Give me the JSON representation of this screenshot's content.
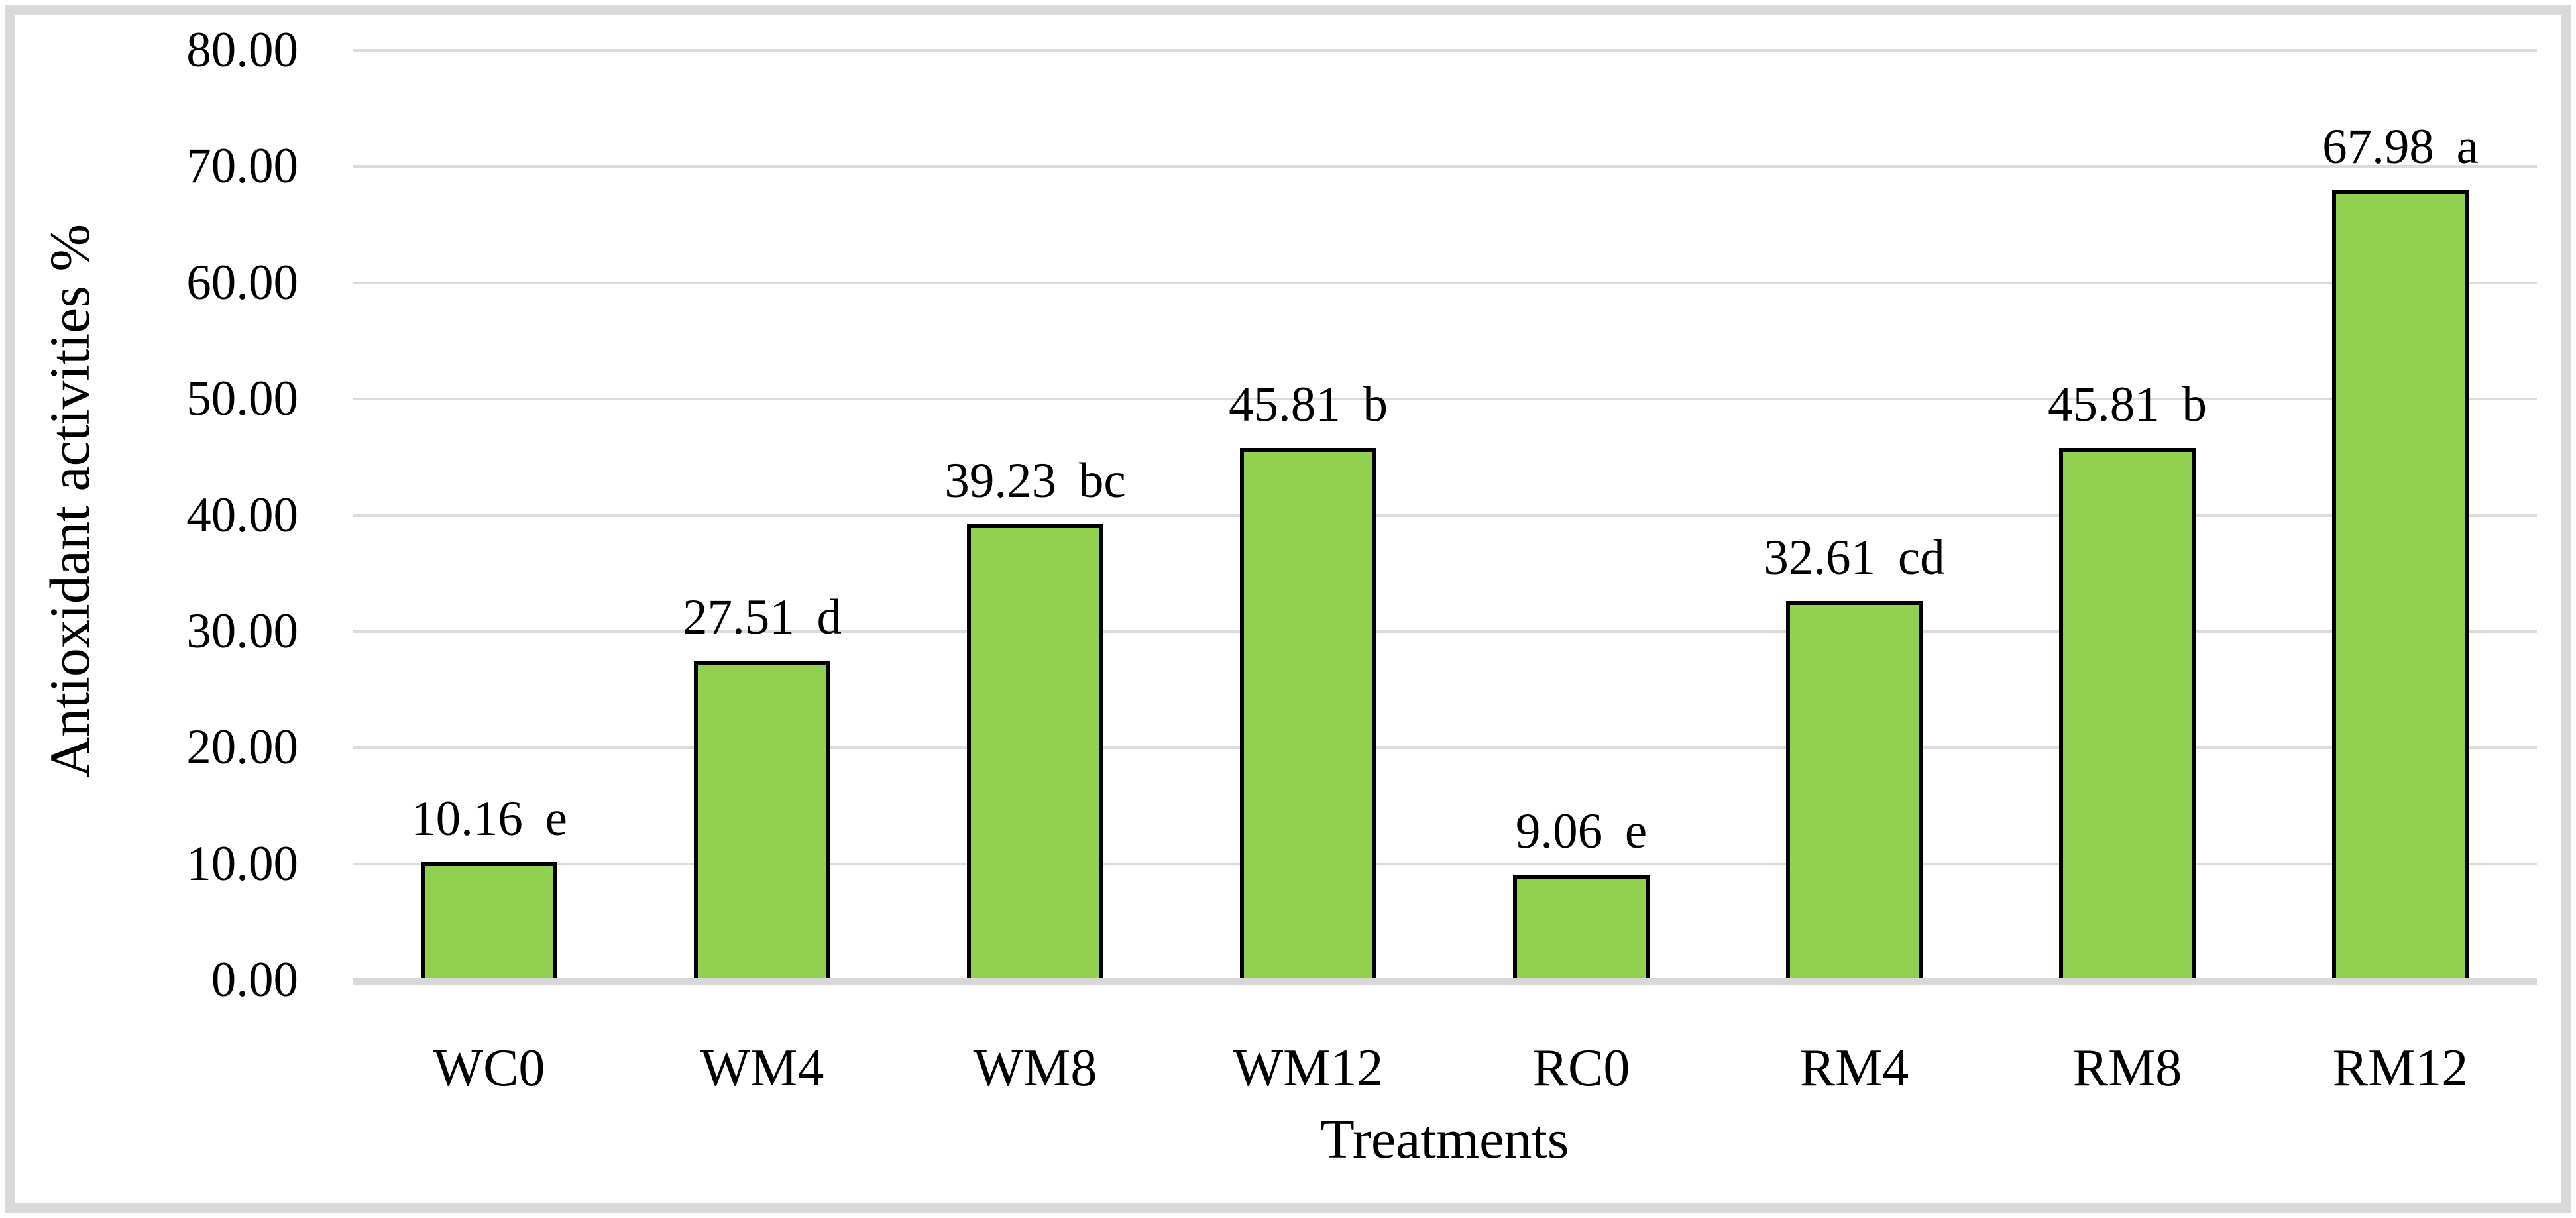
{
  "figure": {
    "background": "#FFFFFF",
    "frame_color": "#D9D9D9"
  },
  "chart_data": {
    "type": "bar",
    "title": "",
    "xlabel": "Treatments",
    "ylabel": "Antioxidant activities %",
    "ylim": [
      0,
      80
    ],
    "ytick_step": 10,
    "yticks": [
      "0.00",
      "10.00",
      "20.00",
      "30.00",
      "40.00",
      "50.00",
      "60.00",
      "70.00",
      "80.00"
    ],
    "grid": "horizontal",
    "legend": "none",
    "categories": [
      "WC0",
      "WM4",
      "WM8",
      "WM12",
      "RC0",
      "RM4",
      "RM8",
      "RM12"
    ],
    "values": [
      10.16,
      27.51,
      39.23,
      45.81,
      9.06,
      32.61,
      45.81,
      67.98
    ],
    "data_labels": [
      {
        "text": "10.16",
        "letter": "e"
      },
      {
        "text": "27.51",
        "letter": "d"
      },
      {
        "text": "39.23",
        "letter": "bc"
      },
      {
        "text": "45.81",
        "letter": "b"
      },
      {
        "text": "9.06",
        "letter": "e"
      },
      {
        "text": "32.61",
        "letter": "cd"
      },
      {
        "text": "45.81",
        "letter": "b"
      },
      {
        "text": "67.98",
        "letter": "a"
      }
    ],
    "colors": {
      "bar_fill": "#92D050",
      "bar_border": "#000000",
      "gridline": "#DBDBDB",
      "axis_line": "#D8D8D8",
      "text": "#000000"
    }
  }
}
